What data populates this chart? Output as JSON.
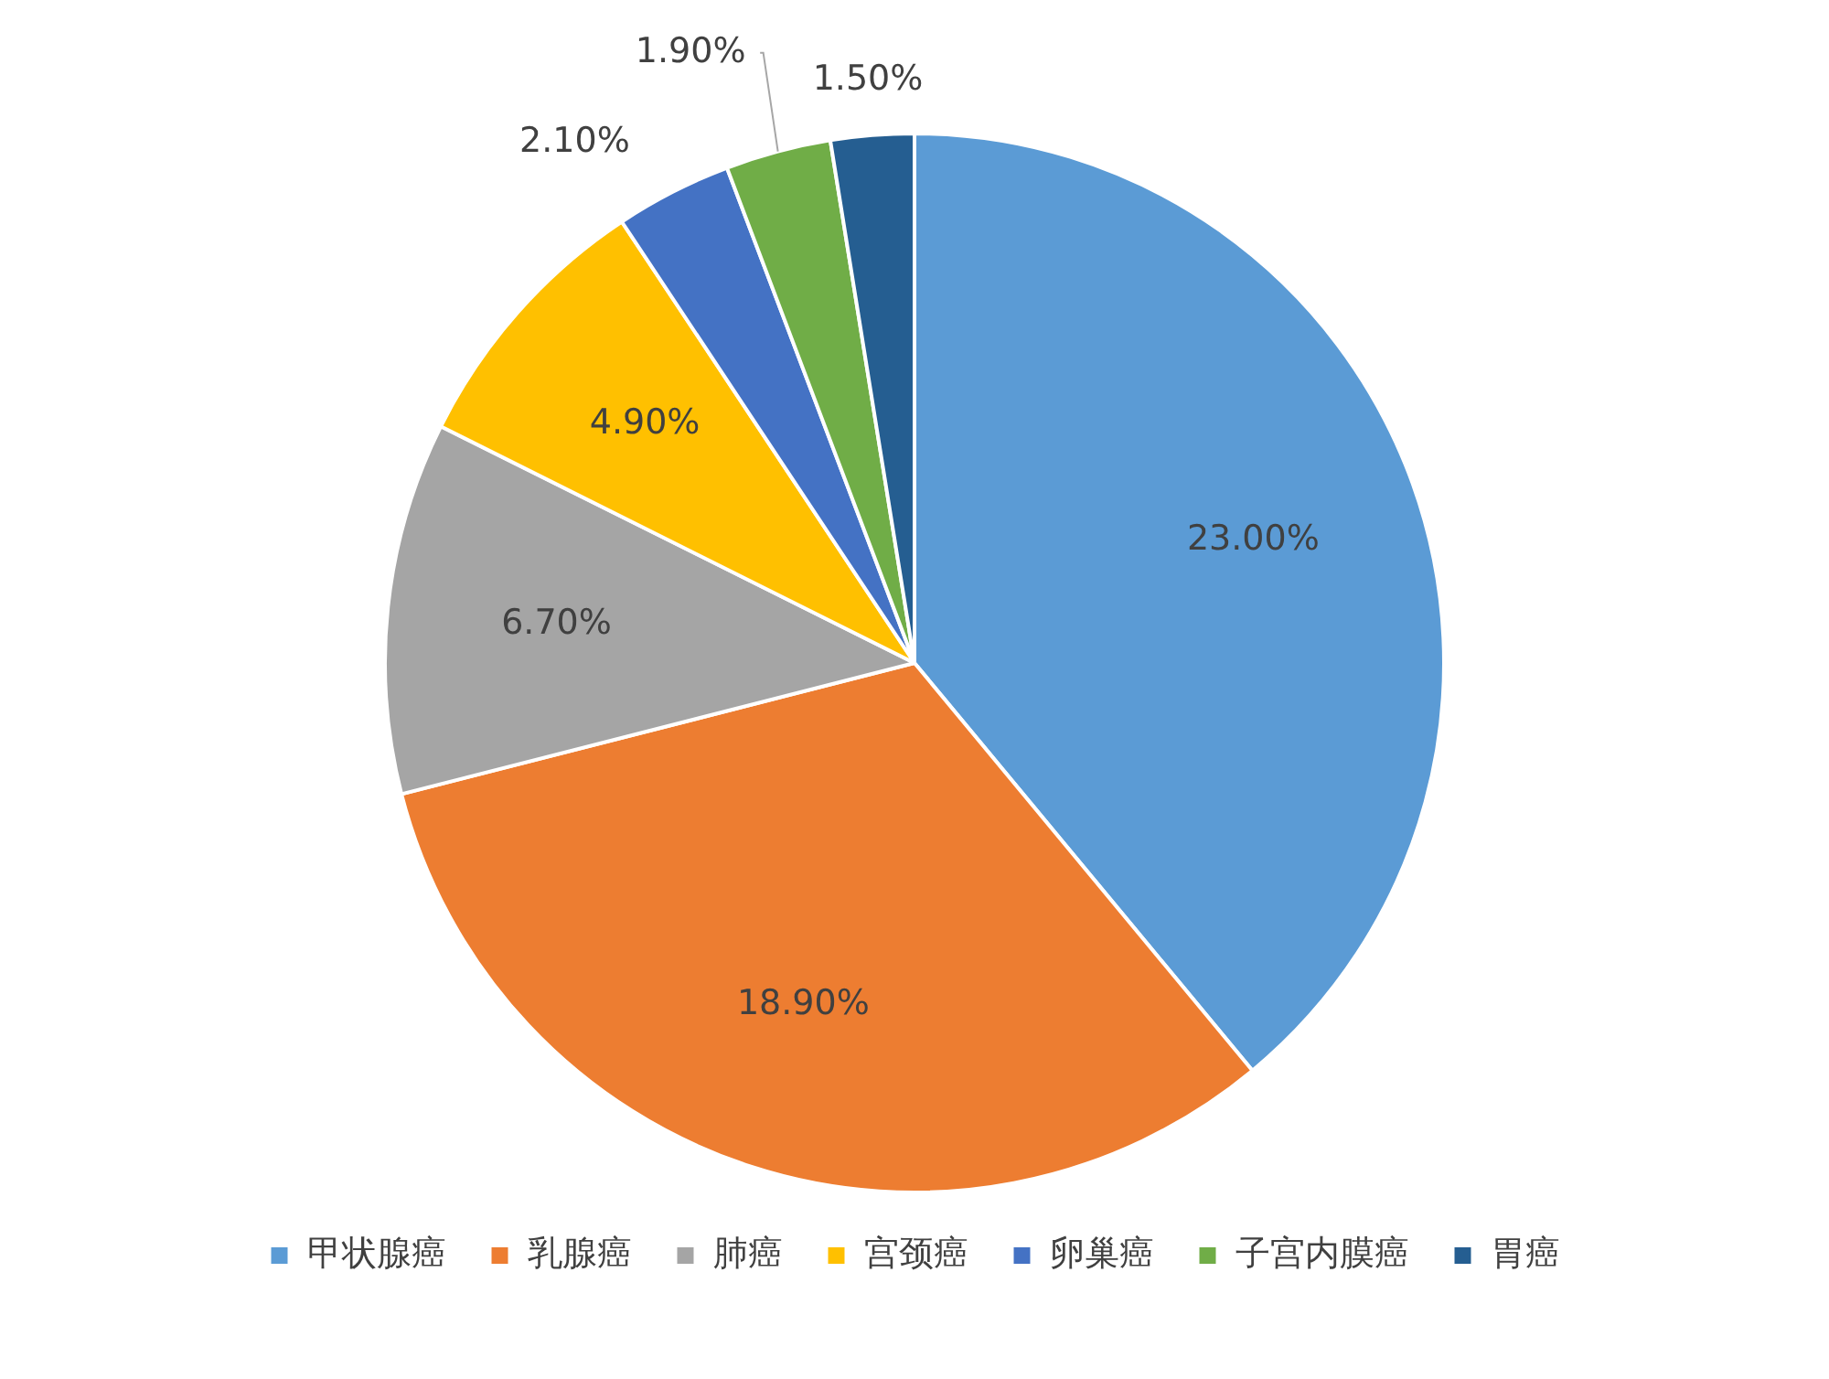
{
  "chart_data": {
    "type": "pie",
    "categories": [
      "甲状腺癌",
      "乳腺癌",
      "肺癌",
      "宫颈癌",
      "卵巢癌",
      "子宫内膜癌",
      "胃癌"
    ],
    "values": [
      23,
      18.9,
      6.7,
      4.9,
      2.1,
      1.9,
      1.5
    ],
    "value_labels": [
      "23.00%",
      "18.90%",
      "6.70%",
      "4.90%",
      "2.10%",
      "1.90%",
      "1.50%"
    ],
    "colors": [
      "#5b9bd5",
      "#ed7d31",
      "#a5a5a5",
      "#ffc000",
      "#4472c4",
      "#70ad47",
      "#255e91"
    ],
    "legend": "bottom"
  }
}
